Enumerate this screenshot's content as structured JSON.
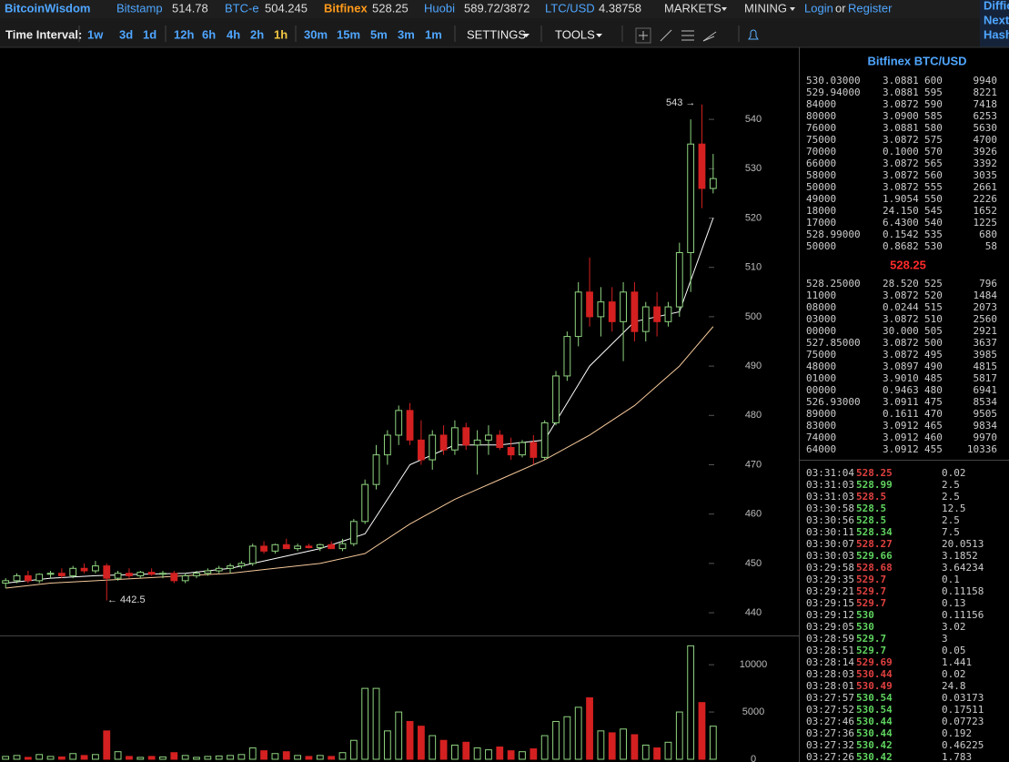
{
  "top_bar": {
    "brand": "BitcoinWisdom",
    "tickers": [
      {
        "name": "Bitstamp",
        "price": "514.78"
      },
      {
        "name": "BTC-e",
        "price": "504.245"
      },
      {
        "name": "Bitfinex",
        "price": "528.25"
      },
      {
        "name": "Huobi",
        "price": "589.72/3872"
      },
      {
        "name": "LTC/USD",
        "price": "4.38758"
      }
    ],
    "active_ticker": 2,
    "menus": [
      "MARKETS",
      "MINING"
    ],
    "login": "Login",
    "or": "or",
    "register": "Register",
    "side_links": [
      "Diffic",
      "Next",
      "Hash"
    ]
  },
  "toolbar": {
    "label": "Time Interval:",
    "intervals": [
      "1w",
      "3d",
      "1d",
      "12h",
      "6h",
      "4h",
      "2h",
      "1h",
      "30m",
      "15m",
      "5m",
      "3m",
      "1m"
    ],
    "selected": 7,
    "menus": [
      "SETTINGS",
      "TOOLS"
    ]
  },
  "chart_data": {
    "type": "candlestick",
    "up_color": "#8fd47f",
    "down_color": "#d42020",
    "candles": [
      [
        446,
        447,
        445,
        446.5
      ],
      [
        446.5,
        448,
        446,
        447.5
      ],
      [
        447.5,
        448.5,
        446,
        446.5
      ],
      [
        446.5,
        448,
        446,
        447.8
      ],
      [
        447.8,
        448.5,
        447,
        448
      ],
      [
        448,
        449,
        447,
        447.5
      ],
      [
        447.5,
        449.5,
        447,
        449
      ],
      [
        449,
        450,
        448,
        448.5
      ],
      [
        448.5,
        450.5,
        448,
        449.5
      ],
      [
        449.5,
        450,
        442.5,
        447
      ],
      [
        447,
        448.5,
        446.5,
        448
      ],
      [
        448,
        449,
        447,
        447.5
      ],
      [
        447.5,
        448.5,
        447,
        448.2
      ],
      [
        448.2,
        449,
        447.5,
        447.8
      ],
      [
        447.8,
        448.5,
        447,
        448
      ],
      [
        448,
        448.5,
        446,
        446.5
      ],
      [
        446.5,
        448,
        446,
        447.5
      ],
      [
        447.5,
        448.5,
        447,
        448
      ],
      [
        448,
        449,
        447.5,
        448.5
      ],
      [
        448.5,
        449.5,
        448,
        449
      ],
      [
        449,
        450,
        448,
        449.5
      ],
      [
        449.5,
        450.5,
        449,
        450
      ],
      [
        450,
        454,
        449.5,
        453.5
      ],
      [
        453.5,
        454.5,
        452,
        452.5
      ],
      [
        452.5,
        454,
        452,
        453.8
      ],
      [
        453.8,
        455,
        453,
        453
      ],
      [
        453,
        454,
        452.5,
        453.5
      ],
      [
        453.5,
        454,
        453,
        453.2
      ],
      [
        453.2,
        454,
        452.5,
        453.8
      ],
      [
        453.8,
        454.5,
        453,
        453
      ],
      [
        453,
        455,
        452.5,
        454
      ],
      [
        454,
        459,
        453.5,
        458.5
      ],
      [
        458.5,
        467,
        458,
        466
      ],
      [
        466,
        474,
        465,
        472
      ],
      [
        472,
        477,
        470,
        476
      ],
      [
        476,
        482,
        474,
        481
      ],
      [
        481,
        482.5,
        474,
        475
      ],
      [
        475,
        479,
        470,
        471
      ],
      [
        471,
        477,
        469,
        476
      ],
      [
        476,
        478,
        472,
        473
      ],
      [
        473,
        479,
        472,
        477.5
      ],
      [
        477.5,
        478.5,
        473,
        474
      ],
      [
        474,
        477,
        468,
        475
      ],
      [
        475,
        478,
        472,
        476
      ],
      [
        476,
        477,
        473,
        473.5
      ],
      [
        473.5,
        475.5,
        471,
        472
      ],
      [
        472,
        475,
        471.5,
        474.5
      ],
      [
        474.5,
        476,
        470,
        471.5
      ],
      [
        471.5,
        479,
        471,
        478.5
      ],
      [
        478.5,
        489,
        478,
        488
      ],
      [
        488,
        497,
        487,
        496
      ],
      [
        496,
        507,
        494,
        505
      ],
      [
        505,
        512,
        498,
        500
      ],
      [
        500,
        506,
        496,
        503
      ],
      [
        503,
        506,
        497,
        499
      ],
      [
        499,
        507,
        491,
        505
      ],
      [
        505,
        507,
        495,
        497
      ],
      [
        497,
        503,
        495,
        502
      ],
      [
        502,
        505,
        496,
        499
      ],
      [
        499,
        503,
        498,
        502
      ],
      [
        502,
        515,
        500,
        513
      ],
      [
        513,
        540,
        505,
        535
      ],
      [
        535,
        543,
        522,
        526
      ],
      [
        526,
        533,
        525,
        528
      ]
    ],
    "volumes": [
      300,
      400,
      200,
      500,
      300,
      250,
      600,
      400,
      500,
      3000,
      800,
      300,
      200,
      300,
      250,
      700,
      400,
      200,
      300,
      350,
      400,
      500,
      1200,
      900,
      600,
      800,
      400,
      300,
      400,
      300,
      700,
      2000,
      7500,
      7500,
      3000,
      5000,
      4000,
      3500,
      2500,
      2000,
      1500,
      1800,
      1200,
      1000,
      1300,
      900,
      800,
      1100,
      2500,
      4000,
      4500,
      5500,
      6500,
      3000,
      2800,
      3200,
      2600,
      1500,
      1200,
      1800,
      5000,
      12000,
      6000,
      3500
    ],
    "ma_fast": {
      "color": "#ffffff",
      "x": [
        0,
        4,
        8,
        12,
        16,
        20,
        24,
        28,
        32,
        36,
        40,
        44,
        48,
        52,
        56,
        60,
        63
      ],
      "values": [
        446,
        447,
        447.5,
        447.8,
        448,
        449,
        451,
        453,
        456,
        470,
        474,
        474,
        475,
        490,
        499,
        501,
        520
      ]
    },
    "ma_slow": {
      "color": "#f5c89a",
      "x": [
        0,
        4,
        8,
        12,
        16,
        20,
        24,
        28,
        32,
        36,
        40,
        44,
        48,
        52,
        56,
        60,
        63
      ],
      "values": [
        445,
        446,
        446.5,
        447,
        447.5,
        448,
        449,
        450,
        452,
        458,
        463,
        467,
        471,
        476,
        482,
        490,
        498
      ]
    },
    "ylim": [
      435.4,
      554.6
    ],
    "yticks": [
      440,
      450,
      460,
      470,
      480,
      490,
      500,
      510,
      520,
      530,
      540
    ],
    "xlim": [
      -0.5,
      63.5
    ],
    "volume_ylim": [
      0,
      13000
    ],
    "volume_ticks": [
      0,
      5000,
      10000
    ],
    "annotations": [
      "543 →",
      "← 442.5"
    ]
  },
  "order_book": {
    "title": "Bitfinex BTC/USD",
    "asks": [
      [
        "530.03000",
        "3.0881",
        "600",
        "9940"
      ],
      [
        "529.94000",
        "3.0881",
        "595",
        "8221"
      ],
      [
        "84000",
        "3.0872",
        "590",
        "7418"
      ],
      [
        "80000",
        "3.0900",
        "585",
        "6253"
      ],
      [
        "76000",
        "3.0881",
        "580",
        "5630"
      ],
      [
        "75000",
        "3.0872",
        "575",
        "4700"
      ],
      [
        "70000",
        "0.1000",
        "570",
        "3926"
      ],
      [
        "66000",
        "3.0872",
        "565",
        "3392"
      ],
      [
        "58000",
        "3.0872",
        "560",
        "3035"
      ],
      [
        "50000",
        "3.0872",
        "555",
        "2661"
      ],
      [
        "49000",
        "1.9054",
        "550",
        "2226"
      ],
      [
        "18000",
        "24.150",
        "545",
        "1652"
      ],
      [
        "17000",
        "6.4300",
        "540",
        "1225"
      ],
      [
        "528.99000",
        "0.1542",
        "535",
        "680"
      ],
      [
        "50000",
        "0.8682",
        "530",
        "58"
      ]
    ],
    "last": "528.25",
    "bids": [
      [
        "528.25000",
        "28.520",
        "525",
        "796"
      ],
      [
        "11000",
        "3.0872",
        "520",
        "1484"
      ],
      [
        "08000",
        "0.0244",
        "515",
        "2073"
      ],
      [
        "03000",
        "3.0872",
        "510",
        "2560"
      ],
      [
        "00000",
        "30.000",
        "505",
        "2921"
      ],
      [
        "527.85000",
        "3.0872",
        "500",
        "3637"
      ],
      [
        "75000",
        "3.0872",
        "495",
        "3985"
      ],
      [
        "48000",
        "3.0897",
        "490",
        "4815"
      ],
      [
        "01000",
        "3.9010",
        "485",
        "5817"
      ],
      [
        "00000",
        "0.9463",
        "480",
        "6941"
      ],
      [
        "526.93000",
        "3.0911",
        "475",
        "8534"
      ],
      [
        "89000",
        "0.1611",
        "470",
        "9505"
      ],
      [
        "83000",
        "3.0912",
        "465",
        "9834"
      ],
      [
        "74000",
        "3.0912",
        "460",
        "9970"
      ],
      [
        "64000",
        "3.0912",
        "455",
        "10336"
      ]
    ]
  },
  "trades": [
    {
      "time": "03:31:04",
      "price": "528.25",
      "amount": "0.02",
      "color": "#e04040"
    },
    {
      "time": "03:31:03",
      "price": "528.99",
      "amount": "2.5",
      "color": "#5fd35f"
    },
    {
      "time": "03:31:03",
      "price": "528.5",
      "amount": "2.5",
      "color": "#e04040"
    },
    {
      "time": "03:30:58",
      "price": "528.5",
      "amount": "12.5",
      "color": "#5fd35f"
    },
    {
      "time": "03:30:56",
      "price": "528.5",
      "amount": "2.5",
      "color": "#5fd35f"
    },
    {
      "time": "03:30:11",
      "price": "528.34",
      "amount": "7.5",
      "color": "#5fd35f"
    },
    {
      "time": "03:30:07",
      "price": "528.27",
      "amount": "20.0513",
      "color": "#e04040"
    },
    {
      "time": "03:30:03",
      "price": "529.66",
      "amount": "3.1852",
      "color": "#5fd35f"
    },
    {
      "time": "03:29:58",
      "price": "528.68",
      "amount": "3.64234",
      "color": "#e04040"
    },
    {
      "time": "03:29:35",
      "price": "529.7",
      "amount": "0.1",
      "color": "#e04040"
    },
    {
      "time": "03:29:21",
      "price": "529.7",
      "amount": "0.11158",
      "color": "#e04040"
    },
    {
      "time": "03:29:15",
      "price": "529.7",
      "amount": "0.13",
      "color": "#e04040"
    },
    {
      "time": "03:29:12",
      "price": "530",
      "amount": "0.11156",
      "color": "#5fd35f"
    },
    {
      "time": "03:29:05",
      "price": "530",
      "amount": "3.02",
      "color": "#5fd35f"
    },
    {
      "time": "03:28:59",
      "price": "529.7",
      "amount": "3",
      "color": "#5fd35f"
    },
    {
      "time": "03:28:51",
      "price": "529.7",
      "amount": "0.05",
      "color": "#5fd35f"
    },
    {
      "time": "03:28:14",
      "price": "529.69",
      "amount": "1.441",
      "color": "#e04040"
    },
    {
      "time": "03:28:03",
      "price": "530.44",
      "amount": "0.02",
      "color": "#e04040"
    },
    {
      "time": "03:28:01",
      "price": "530.49",
      "amount": "24.8",
      "color": "#e04040"
    },
    {
      "time": "03:27:57",
      "price": "530.54",
      "amount": "0.03173",
      "color": "#5fd35f"
    },
    {
      "time": "03:27:52",
      "price": "530.54",
      "amount": "0.17511",
      "color": "#5fd35f"
    },
    {
      "time": "03:27:46",
      "price": "530.44",
      "amount": "0.07723",
      "color": "#5fd35f"
    },
    {
      "time": "03:27:36",
      "price": "530.44",
      "amount": "0.192",
      "color": "#5fd35f"
    },
    {
      "time": "03:27:32",
      "price": "530.42",
      "amount": "0.46225",
      "color": "#5fd35f"
    },
    {
      "time": "03:27:26",
      "price": "530.42",
      "amount": "1.783",
      "color": "#5fd35f"
    }
  ]
}
